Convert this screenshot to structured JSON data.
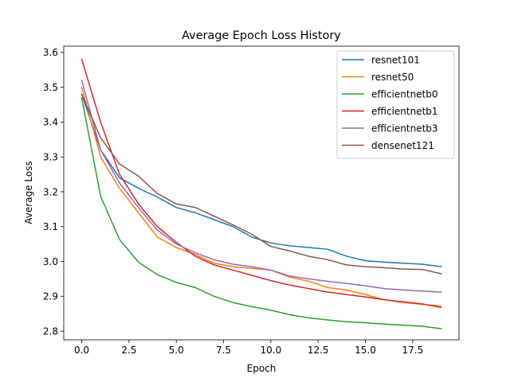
{
  "chart_data": {
    "type": "line",
    "title": "Average Epoch Loss History",
    "xlabel": "Epoch",
    "ylabel": "Average Loss",
    "xlim": [
      -0.95,
      19.95
    ],
    "ylim": [
      2.775,
      3.618
    ],
    "xticks": [
      0.0,
      2.5,
      5.0,
      7.5,
      10.0,
      12.5,
      15.0,
      17.5
    ],
    "xtick_labels": [
      "0.0",
      "2.5",
      "5.0",
      "7.5",
      "10.0",
      "12.5",
      "15.0",
      "17.5"
    ],
    "yticks": [
      2.8,
      2.9,
      3.0,
      3.1,
      3.2,
      3.3,
      3.4,
      3.5,
      3.6
    ],
    "ytick_labels": [
      "2.8",
      "2.9",
      "3.0",
      "3.1",
      "3.2",
      "3.3",
      "3.4",
      "3.5",
      "3.6"
    ],
    "grid": false,
    "legend_position": "top-right",
    "x": [
      0,
      1,
      2,
      3,
      4,
      5,
      6,
      7,
      8,
      9,
      10,
      11,
      12,
      13,
      14,
      15,
      16,
      17,
      18,
      19
    ],
    "series": [
      {
        "name": "resnet101",
        "color": "#1f77b4",
        "values": [
          3.48,
          3.32,
          3.24,
          3.21,
          3.185,
          3.155,
          3.14,
          3.12,
          3.1,
          3.07,
          3.053,
          3.045,
          3.04,
          3.035,
          3.015,
          3.002,
          2.998,
          2.995,
          2.992,
          2.985
        ]
      },
      {
        "name": "resnet50",
        "color": "#ff7f0e",
        "values": [
          3.5,
          3.3,
          3.21,
          3.14,
          3.07,
          3.04,
          3.02,
          2.995,
          2.985,
          2.98,
          2.975,
          2.955,
          2.943,
          2.925,
          2.918,
          2.905,
          2.89,
          2.882,
          2.877,
          2.872
        ]
      },
      {
        "name": "efficientnetb0",
        "color": "#2ca02c",
        "values": [
          3.47,
          3.187,
          3.063,
          2.998,
          2.962,
          2.94,
          2.925,
          2.9,
          2.882,
          2.87,
          2.86,
          2.847,
          2.838,
          2.832,
          2.827,
          2.824,
          2.82,
          2.817,
          2.814,
          2.807
        ]
      },
      {
        "name": "efficientnetb1",
        "color": "#d62728",
        "values": [
          3.58,
          3.4,
          3.25,
          3.165,
          3.1,
          3.055,
          3.015,
          2.99,
          2.975,
          2.96,
          2.945,
          2.932,
          2.922,
          2.912,
          2.905,
          2.898,
          2.89,
          2.884,
          2.878,
          2.868
        ]
      },
      {
        "name": "efficientnetb3",
        "color": "#9467bd",
        "values": [
          3.52,
          3.32,
          3.225,
          3.155,
          3.09,
          3.05,
          3.025,
          3.005,
          2.992,
          2.985,
          2.975,
          2.958,
          2.95,
          2.943,
          2.937,
          2.93,
          2.922,
          2.918,
          2.915,
          2.912
        ]
      },
      {
        "name": "densenet121",
        "color": "#8c564b",
        "values": [
          3.48,
          3.355,
          3.28,
          3.245,
          3.195,
          3.165,
          3.155,
          3.13,
          3.105,
          3.078,
          3.043,
          3.03,
          3.015,
          3.005,
          2.99,
          2.985,
          2.982,
          2.978,
          2.977,
          2.965
        ]
      }
    ]
  }
}
